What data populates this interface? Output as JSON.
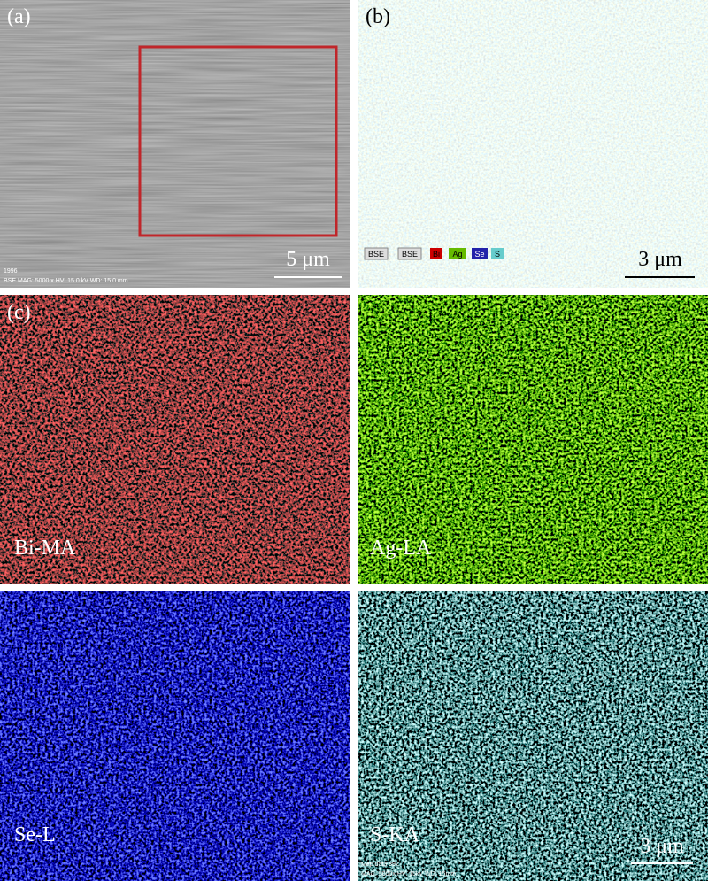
{
  "panel_a": {
    "label": "(a)",
    "scale": "5 μm",
    "id": "1996",
    "info": "BSE  MAG: 5000 x  HV: 15.0 kV  WD: 15.0 mm"
  },
  "panel_b": {
    "label": "(b)",
    "scale": "3 μm",
    "legend": [
      "BSE",
      "BSE",
      "Bi",
      "Ag",
      "Se",
      "S"
    ]
  },
  "panel_c": {
    "label": "(c)",
    "maps": [
      "Bi-MA",
      "Ag-LA",
      "Se-L",
      "S-KA"
    ],
    "scale": "3 μm",
    "info_1": "Map data 392",
    "info_2": "MAG: 5000x  HV: 15kV  WD: 15mm"
  }
}
